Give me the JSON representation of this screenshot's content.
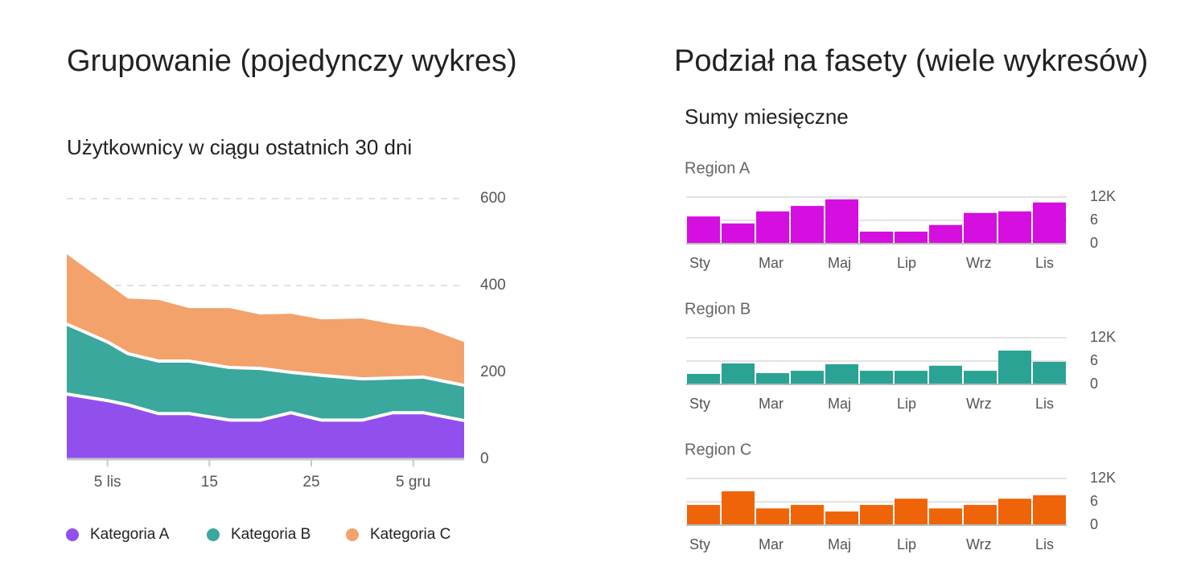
{
  "panels": [
    {
      "heading": "Grupowanie (pojedynczy wykres)"
    },
    {
      "heading": "Podział na fasety (wiele wykresów)",
      "subtitle": "Sumy miesięczne"
    }
  ],
  "chart_data": [
    {
      "type": "stacked_area",
      "title": "Użytkownicy w ciągu ostatnich 30 dni",
      "x": [
        1,
        5,
        7,
        10,
        13,
        17,
        20,
        23,
        26,
        30,
        33,
        36,
        40
      ],
      "xlim": [
        1,
        40
      ],
      "xticks": [
        {
          "value": 5,
          "label": "5 lis"
        },
        15,
        25,
        {
          "value": 35,
          "label": "5 gru"
        }
      ],
      "ylim": [
        0,
        600
      ],
      "yticks": [
        0,
        200,
        400,
        600
      ],
      "grid": true,
      "legend": "bottom",
      "series": [
        {
          "name": "Kategoria A",
          "color": "#9150ee",
          "values": [
            150,
            135,
            125,
            105,
            105,
            90,
            90,
            107,
            90,
            90,
            107,
            107,
            89
          ]
        },
        {
          "name": "Kategoria B",
          "color": "#3aa89c",
          "values": [
            161,
            135,
            118,
            121,
            121,
            121,
            119,
            93,
            103,
            95,
            80,
            82,
            81
          ]
        },
        {
          "name": "Kategoria C",
          "color": "#f3a26b",
          "values": [
            161,
            134,
            127,
            141,
            122,
            137,
            124,
            135,
            129,
            139,
            124,
            115,
            100
          ]
        }
      ]
    },
    {
      "type": "bar",
      "title": "Region A",
      "color": "#d40fdf",
      "categories": [
        "Sty",
        null,
        "Mar",
        null,
        "Maj",
        null,
        "Lip",
        null,
        "Wrz",
        null,
        "Lis"
      ],
      "values": [
        7,
        5.2,
        8.3,
        9.7,
        11.4,
        3.1,
        3.1,
        4.8,
        7.9,
        8.3,
        10.6
      ],
      "ylim": [
        0,
        12
      ],
      "yticks": [
        0,
        6,
        {
          "value": 12,
          "label": "12K"
        }
      ],
      "grid": true
    },
    {
      "type": "bar",
      "title": "Region B",
      "color": "#2aa294",
      "categories": [
        "Sty",
        null,
        "Mar",
        null,
        "Maj",
        null,
        "Lip",
        null,
        "Wrz",
        null,
        "Lis"
      ],
      "values": [
        2.7,
        5.4,
        2.9,
        3.5,
        5.2,
        3.5,
        3.5,
        4.8,
        3.5,
        8.7,
        5.8
      ],
      "ylim": [
        0,
        12
      ],
      "yticks": [
        0,
        6,
        {
          "value": 12,
          "label": "12K"
        }
      ],
      "grid": true
    },
    {
      "type": "bar",
      "title": "Region C",
      "color": "#ef6408",
      "categories": [
        "Sty",
        null,
        "Mar",
        null,
        "Maj",
        null,
        "Lip",
        null,
        "Wrz",
        null,
        "Lis"
      ],
      "values": [
        5.2,
        8.7,
        4.3,
        5.2,
        3.5,
        5.2,
        6.8,
        4.3,
        5.2,
        6.8,
        7.7
      ],
      "ylim": [
        0,
        12
      ],
      "yticks": [
        0,
        6,
        {
          "value": 12,
          "label": "12K"
        }
      ],
      "grid": true
    }
  ]
}
